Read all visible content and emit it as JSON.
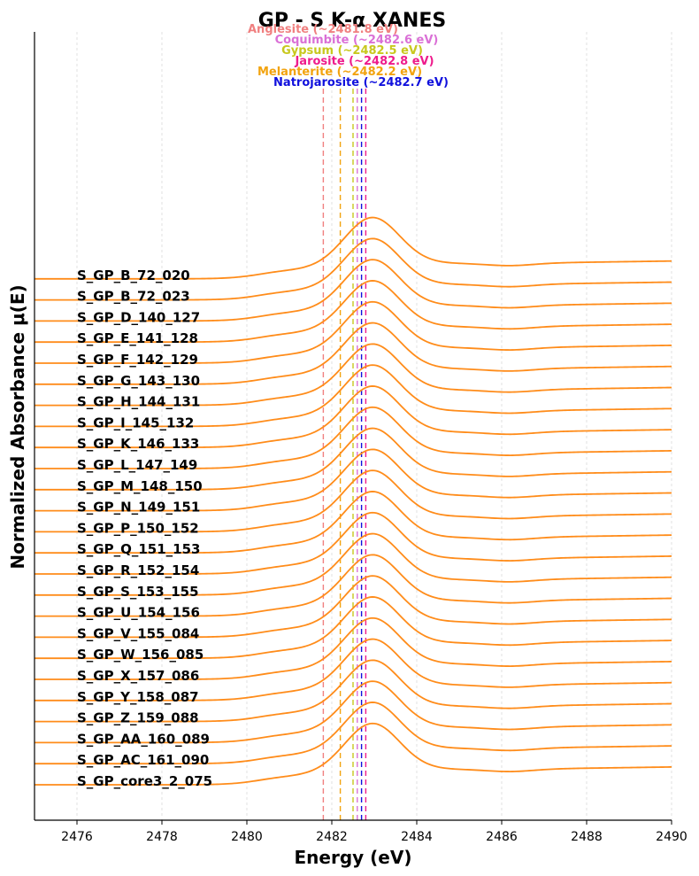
{
  "chart_data": {
    "type": "line",
    "title": "GP - S K-α XANES",
    "xlabel": "Energy (eV)",
    "ylabel": "Normalized Absorbance μ(E)",
    "xlim": [
      2475,
      2490
    ],
    "x_ticks": [
      2476,
      2478,
      2480,
      2482,
      2484,
      2486,
      2488,
      2490
    ],
    "grid": "vertical dashed",
    "line_color": "#ff8c1a",
    "series_offset": 0.34,
    "series": [
      {
        "name": "S_GP_B_72_020"
      },
      {
        "name": "S_GP_B_72_023"
      },
      {
        "name": "S_GP_D_140_127"
      },
      {
        "name": "S_GP_E_141_128"
      },
      {
        "name": "S_GP_F_142_129"
      },
      {
        "name": "S_GP_G_143_130"
      },
      {
        "name": "S_GP_H_144_131"
      },
      {
        "name": "S_GP_I_145_132"
      },
      {
        "name": "S_GP_K_146_133"
      },
      {
        "name": "S_GP_L_147_149"
      },
      {
        "name": "S_GP_M_148_150"
      },
      {
        "name": "S_GP_N_149_151"
      },
      {
        "name": "S_GP_P_150_152"
      },
      {
        "name": "S_GP_Q_151_153"
      },
      {
        "name": "S_GP_R_152_154"
      },
      {
        "name": "S_GP_S_153_155"
      },
      {
        "name": "S_GP_U_154_156"
      },
      {
        "name": "S_GP_V_155_084"
      },
      {
        "name": "S_GP_W_156_085"
      },
      {
        "name": "S_GP_X_157_086"
      },
      {
        "name": "S_GP_Y_158_087"
      },
      {
        "name": "S_GP_Z_159_088"
      },
      {
        "name": "S_GP_AA_160_089"
      },
      {
        "name": "S_GP_AC_161_090"
      },
      {
        "name": "S_GP_core3_2_075"
      }
    ],
    "spectrum_shape": {
      "pre_edge": 0.0,
      "shoulder_x": 2480.3,
      "shoulder_height": 0.75,
      "peak_x": 2482.95,
      "peak_height": 5.4,
      "post_edge": 1.35,
      "trough_x": 2486.2,
      "trough_height": 1.15,
      "end_height": 1.55
    },
    "reference_lines": [
      {
        "label": "Anglesite (~2481.8 eV)",
        "energy": 2481.8,
        "color": "#f08080"
      },
      {
        "label": "Coquimbite (~2482.6 eV)",
        "energy": 2482.6,
        "color": "#da70d6"
      },
      {
        "label": "Gypsum (~2482.5 eV)",
        "energy": 2482.5,
        "color": "#c8c81e"
      },
      {
        "label": "Jarosite (~2482.8 eV)",
        "energy": 2482.8,
        "color": "#ee1c8c"
      },
      {
        "label": "Melanterite (~2482.2 eV)",
        "energy": 2482.2,
        "color": "#f2a30f"
      },
      {
        "label": "Natrojarosite (~2482.7 eV)",
        "energy": 2482.7,
        "color": "#1010dd"
      }
    ]
  }
}
